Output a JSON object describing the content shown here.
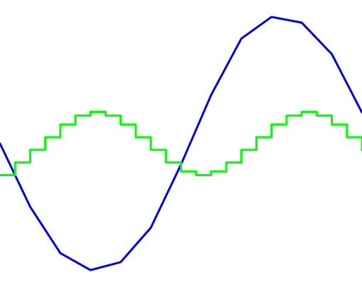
{
  "chart_data": {
    "type": "line",
    "xlabel": "",
    "ylabel": "",
    "grid": false,
    "legend": false,
    "xlim": [
      0,
      12
    ],
    "ylim": [
      -1.1,
      1.1
    ],
    "series": [
      {
        "color": "#0000ff",
        "step": false,
        "x": [
          0,
          1,
          2,
          3,
          4,
          5,
          6,
          7,
          8,
          9,
          10,
          11,
          12
        ],
        "y": [
          0,
          -0.5,
          -0.866,
          -1.0,
          -0.937,
          -0.665,
          -0.166,
          0.384,
          0.829,
          1.0,
          0.955,
          0.706,
          0.244
        ]
      },
      {
        "color": "#00ff00",
        "step": true,
        "x": [
          0,
          0.5,
          1,
          1.5,
          2,
          2.5,
          3,
          3.5,
          4,
          4.5,
          5,
          5.5,
          6,
          6.5,
          7,
          7.5,
          8,
          8.5,
          9,
          9.5,
          10,
          10.5,
          11,
          11.5,
          12
        ],
        "y": [
          -0.25,
          -0.15,
          -0.05,
          0.05,
          0.15,
          0.22,
          0.25,
          0.22,
          0.15,
          0.05,
          -0.05,
          -0.15,
          -0.22,
          -0.25,
          -0.22,
          -0.15,
          -0.05,
          0.05,
          0.15,
          0.22,
          0.25,
          0.22,
          0.15,
          0.05,
          -0.05
        ]
      }
    ]
  }
}
